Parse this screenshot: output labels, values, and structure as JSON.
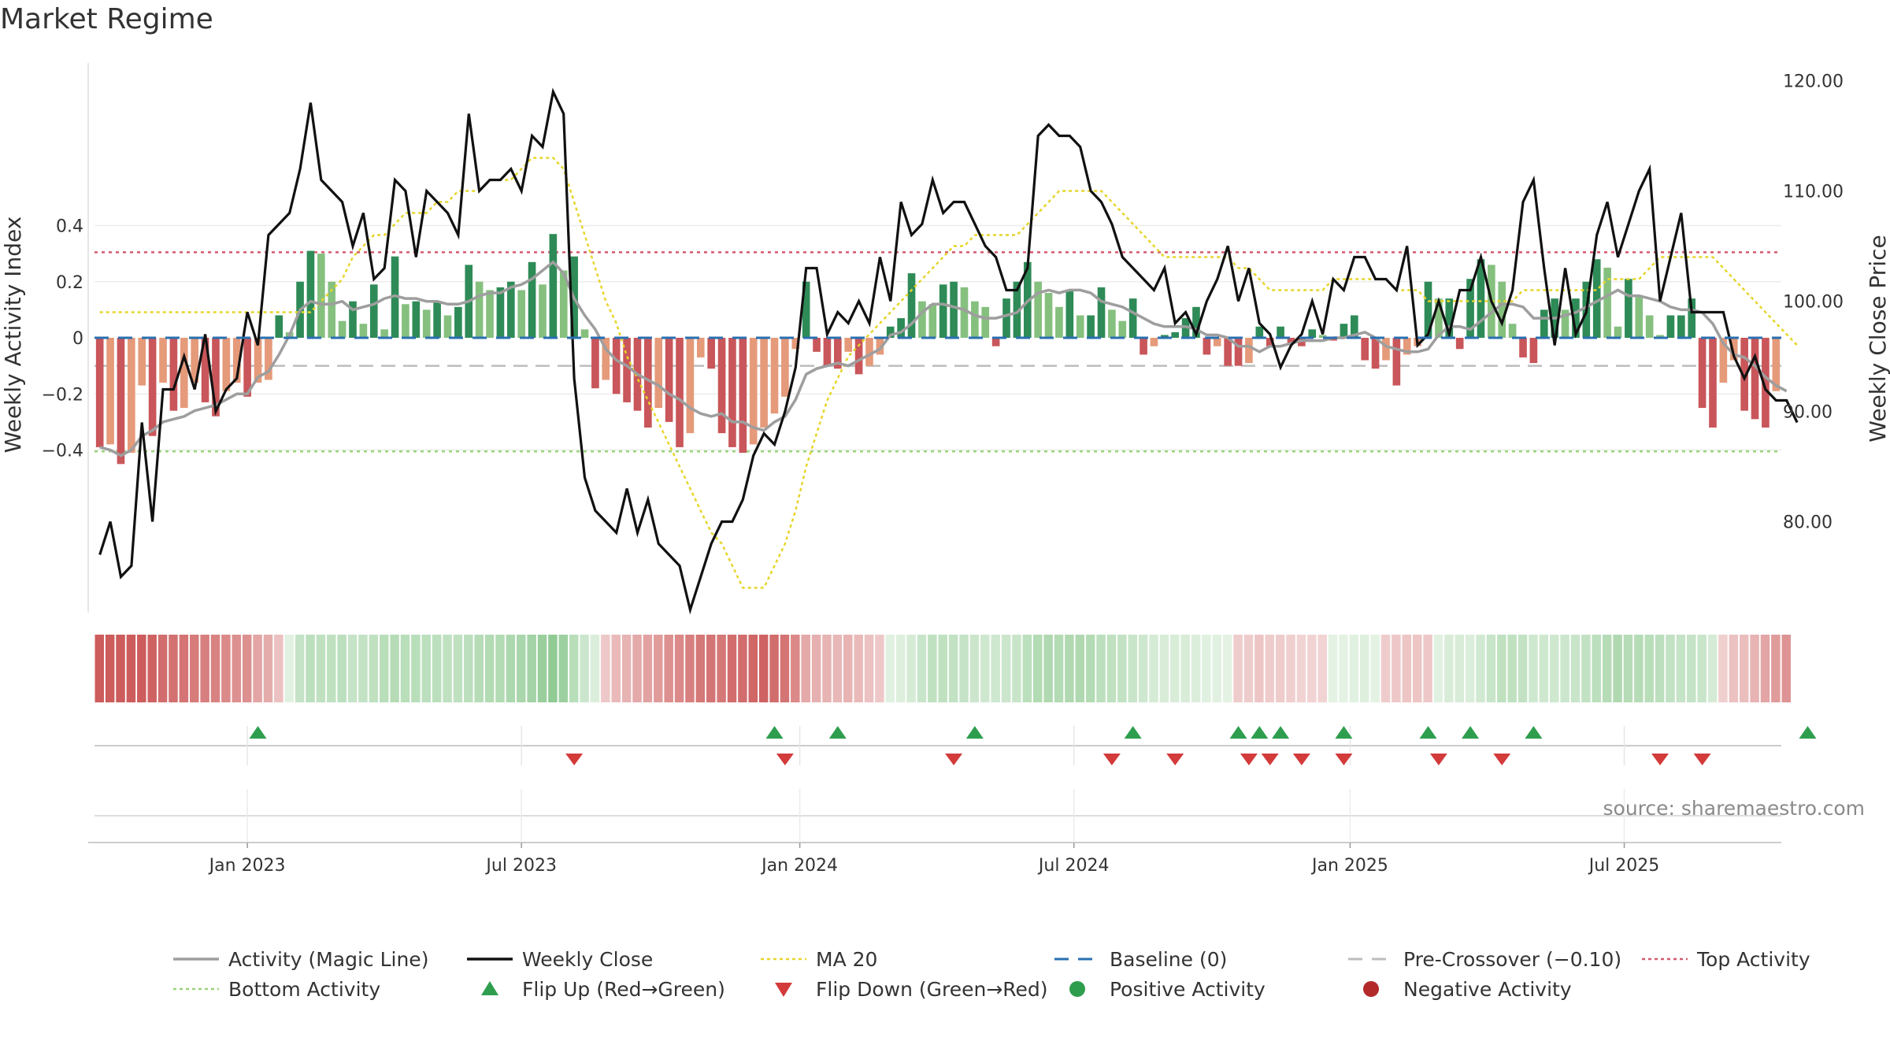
{
  "title": "Market Regime",
  "source": "source: sharemaestro.com",
  "chart_data": {
    "type": "bar",
    "title": "Market Regime",
    "y_left_label": "Weekly Activity Index",
    "y_right_label": "Weekly Close Price",
    "y_left_ticks": [
      {
        "v": 0.4,
        "label": "0.4"
      },
      {
        "v": 0.2,
        "label": "0.2"
      },
      {
        "v": 0,
        "label": "0"
      },
      {
        "v": -0.2,
        "label": "−0.2"
      },
      {
        "v": -0.4,
        "label": "−0.4"
      }
    ],
    "y_right_ticks": [
      {
        "v": 120,
        "label": "120.00"
      },
      {
        "v": 110,
        "label": "110.00"
      },
      {
        "v": 100,
        "label": "100.00"
      },
      {
        "v": 90,
        "label": "90.00"
      },
      {
        "v": 80,
        "label": "80.00"
      }
    ],
    "x_ticks": [
      "Jan 2023",
      "Jul 2023",
      "Jan 2024",
      "Jul 2024",
      "Jan 2025",
      "Jul 2025"
    ],
    "x_tick_weeks": [
      14.5,
      40.5,
      66.9,
      92.9,
      119.1,
      145.1
    ],
    "start_date": "2022-10-02",
    "reference_lines": {
      "top_activity": 0.305,
      "bottom_activity": -0.405,
      "pre_crossover": -0.1,
      "baseline": 0
    },
    "activity": [
      -0.39,
      -0.38,
      -0.45,
      -0.41,
      -0.17,
      -0.35,
      -0.16,
      -0.26,
      -0.25,
      -0.16,
      -0.23,
      -0.28,
      -0.19,
      -0.16,
      -0.21,
      -0.16,
      -0.15,
      0.08,
      0.02,
      0.2,
      0.31,
      0.3,
      0.2,
      0.06,
      0.13,
      0.05,
      0.19,
      0.03,
      0.29,
      0.12,
      0.13,
      0.1,
      0.13,
      0.08,
      0.11,
      0.26,
      0.2,
      0.17,
      0.18,
      0.2,
      0.17,
      0.27,
      0.19,
      0.37,
      0.24,
      0.29,
      0.03,
      -0.18,
      -0.15,
      -0.2,
      -0.23,
      -0.26,
      -0.32,
      -0.25,
      -0.3,
      -0.39,
      -0.34,
      -0.07,
      -0.11,
      -0.34,
      -0.39,
      -0.41,
      -0.38,
      -0.32,
      -0.27,
      -0.21,
      -0.04,
      0.2,
      -0.05,
      -0.1,
      -0.11,
      -0.05,
      -0.13,
      -0.1,
      -0.06,
      0.04,
      0.07,
      0.23,
      0.13,
      0.12,
      0.19,
      0.2,
      0.18,
      0.13,
      0.11,
      -0.03,
      0.14,
      0.2,
      0.27,
      0.2,
      0.16,
      0.11,
      0.17,
      0.08,
      0.08,
      0.18,
      0.1,
      0.06,
      0.14,
      -0.06,
      -0.03,
      0.01,
      0.02,
      0.07,
      0.11,
      -0.06,
      -0.03,
      -0.1,
      -0.1,
      -0.09,
      0.04,
      -0.03,
      0.04,
      -0.02,
      -0.03,
      0.03,
      0.01,
      -0.01,
      0.05,
      0.08,
      -0.08,
      -0.11,
      -0.08,
      -0.17,
      -0.06,
      -0.03,
      0.2,
      0.14,
      0.14,
      -0.04,
      0.21,
      0.28,
      0.26,
      0.2,
      0.05,
      -0.07,
      -0.09,
      0.1,
      0.14,
      0.1,
      0.14,
      0.2,
      0.28,
      0.25,
      0.04,
      0.21,
      0.15,
      0.08,
      0.01,
      0.08,
      0.08,
      0.14,
      -0.25,
      -0.32,
      -0.16,
      -0.08,
      -0.26,
      -0.29,
      -0.32,
      -0.19
    ],
    "magic_line": [
      -0.39,
      -0.4,
      -0.42,
      -0.4,
      -0.35,
      -0.33,
      -0.3,
      -0.29,
      -0.28,
      -0.26,
      -0.25,
      -0.24,
      -0.22,
      -0.2,
      -0.2,
      -0.14,
      -0.12,
      -0.06,
      0.01,
      0.1,
      0.13,
      0.12,
      0.12,
      0.13,
      0.1,
      0.11,
      0.12,
      0.14,
      0.15,
      0.14,
      0.14,
      0.13,
      0.13,
      0.12,
      0.12,
      0.13,
      0.15,
      0.16,
      0.16,
      0.18,
      0.19,
      0.21,
      0.24,
      0.27,
      0.23,
      0.14,
      0.08,
      0.03,
      -0.04,
      -0.08,
      -0.1,
      -0.13,
      -0.15,
      -0.17,
      -0.2,
      -0.22,
      -0.25,
      -0.27,
      -0.28,
      -0.27,
      -0.3,
      -0.3,
      -0.32,
      -0.33,
      -0.3,
      -0.28,
      -0.22,
      -0.13,
      -0.11,
      -0.1,
      -0.09,
      -0.1,
      -0.08,
      -0.06,
      -0.04,
      0.01,
      0.02,
      0.05,
      0.09,
      0.12,
      0.12,
      0.11,
      0.1,
      0.08,
      0.07,
      0.07,
      0.08,
      0.09,
      0.13,
      0.16,
      0.17,
      0.16,
      0.17,
      0.17,
      0.16,
      0.13,
      0.12,
      0.11,
      0.09,
      0.07,
      0.05,
      0.04,
      0.04,
      0.04,
      0.03,
      0.01,
      0.01,
      0.0,
      -0.03,
      -0.03,
      -0.05,
      -0.03,
      -0.03,
      -0.02,
      -0.01,
      -0.01,
      -0.01,
      0.0,
      0.0,
      0.01,
      0.02,
      0.0,
      -0.03,
      -0.04,
      -0.05,
      -0.05,
      -0.04,
      0.01,
      0.04,
      0.04,
      0.03,
      0.06,
      0.09,
      0.12,
      0.12,
      0.11,
      0.07,
      0.07,
      0.07,
      0.08,
      0.09,
      0.11,
      0.13,
      0.15,
      0.17,
      0.15,
      0.15,
      0.14,
      0.13,
      0.11,
      0.1,
      0.1,
      0.09,
      0.05,
      -0.02,
      -0.06,
      -0.07,
      -0.1,
      -0.14,
      -0.17,
      -0.19
    ],
    "weekly_close": [
      77.0,
      80.0,
      75.0,
      76.0,
      89.0,
      80.0,
      92.0,
      92.0,
      95.0,
      92.0,
      97.0,
      90.0,
      92.0,
      93.0,
      99.0,
      96.0,
      106.0,
      107.0,
      108.0,
      112.0,
      118.0,
      111.0,
      110.0,
      109.0,
      105.0,
      108.0,
      102.0,
      103.0,
      111.0,
      110.0,
      104.0,
      110.0,
      109.0,
      108.0,
      106.0,
      117.0,
      110.0,
      111.0,
      111.0,
      112.0,
      110.0,
      115.0,
      114.0,
      119.0,
      117.0,
      93.0,
      84.0,
      81.0,
      80.0,
      79.0,
      83.0,
      79.0,
      82.0,
      78.0,
      77.0,
      76.0,
      72.0,
      75.0,
      78.0,
      80.0,
      80.0,
      82.0,
      86.0,
      88.0,
      87.0,
      90.0,
      94.0,
      103.0,
      103.0,
      97.0,
      99.0,
      98.0,
      100.0,
      98.0,
      104.0,
      100.0,
      109.0,
      106.0,
      107.0,
      111.0,
      108.0,
      109.0,
      109.0,
      107.0,
      105.0,
      104.0,
      101.0,
      101.0,
      103.0,
      115.0,
      116.0,
      115.0,
      115.0,
      114.0,
      110.0,
      109.0,
      107.0,
      104.0,
      103.0,
      102.0,
      101.0,
      103.0,
      98.0,
      99.0,
      97.0,
      100.0,
      102.0,
      105.0,
      100.0,
      103.0,
      98.0,
      97.0,
      94.0,
      96.0,
      97.0,
      100.0,
      97.0,
      102.0,
      101.0,
      104.0,
      104.0,
      102.0,
      102.0,
      101.0,
      105.0,
      96.0,
      97.0,
      100.0,
      97.0,
      101.0,
      101.0,
      104.0,
      100.0,
      98.0,
      101.0,
      109.0,
      111.0,
      103.0,
      96.0,
      103.0,
      97.0,
      99.0,
      106.0,
      109.0,
      104.0,
      107.0,
      110.0,
      112.0,
      100.0,
      104.0,
      108.0,
      99.0,
      99.0,
      99.0,
      99.0,
      95.0,
      93.0,
      95.0,
      92.0,
      91.0,
      91.0,
      89.0
    ],
    "ma20": [
      99.0,
      99.0,
      99.0,
      99.0,
      99.0,
      99.0,
      99.0,
      99.0,
      99.0,
      99.0,
      99.0,
      99.0,
      99.0,
      99.0,
      99.0,
      99.0,
      99.0,
      99.0,
      99.0,
      99.0,
      99.0,
      100.0,
      101.0,
      102.0,
      104.0,
      105.0,
      106.0,
      106.0,
      107.0,
      108.0,
      108.0,
      108.0,
      109.0,
      109.0,
      110.0,
      110.0,
      110.0,
      111.0,
      111.0,
      111.0,
      112.0,
      113.0,
      113.0,
      113.0,
      112.0,
      109.0,
      106.0,
      103.0,
      100.0,
      98.0,
      95.0,
      93.0,
      91.0,
      89.0,
      87.0,
      85.0,
      83.0,
      81.0,
      79.0,
      78.0,
      76.0,
      74.0,
      74.0,
      74.0,
      76.0,
      78.0,
      81.0,
      85.0,
      88.0,
      91.0,
      93.0,
      95.0,
      96.0,
      97.0,
      98.0,
      99.0,
      100.0,
      101.0,
      102.0,
      103.0,
      104.0,
      105.0,
      105.0,
      106.0,
      106.0,
      106.0,
      106.0,
      106.0,
      107.0,
      108.0,
      109.0,
      110.0,
      110.0,
      110.0,
      110.0,
      110.0,
      109.0,
      108.0,
      107.0,
      106.0,
      105.0,
      104.0,
      104.0,
      104.0,
      104.0,
      104.0,
      104.0,
      104.0,
      103.0,
      103.0,
      102.0,
      101.0,
      101.0,
      101.0,
      101.0,
      101.0,
      101.0,
      102.0,
      102.0,
      102.0,
      102.0,
      102.0,
      102.0,
      101.0,
      101.0,
      101.0,
      100.0,
      100.0,
      100.0,
      100.0,
      100.0,
      100.0,
      100.0,
      100.0,
      100.0,
      101.0,
      101.0,
      101.0,
      101.0,
      101.0,
      101.0,
      101.0,
      101.0,
      102.0,
      102.0,
      102.0,
      102.0,
      103.0,
      104.0,
      104.0,
      104.0,
      104.0,
      104.0,
      104.0,
      103.0,
      102.0,
      101.0,
      100.0,
      99.0,
      98.0,
      97.0,
      96.0
    ],
    "flip_up_weeks": [
      15,
      64,
      70,
      83,
      98,
      108,
      110,
      112,
      118,
      126,
      130,
      136,
      162
    ],
    "flip_down_weeks": [
      45,
      65,
      81,
      96,
      102,
      109,
      111,
      114,
      118,
      127,
      133,
      148,
      152
    ],
    "legend": [
      {
        "label": "Activity (Magic Line)",
        "kind": "line",
        "color": "#9e9e9e"
      },
      {
        "label": "Weekly Close",
        "kind": "line",
        "color": "#111111"
      },
      {
        "label": "MA 20",
        "kind": "dotted",
        "color": "#e6d52a"
      },
      {
        "label": "Baseline (0)",
        "kind": "dashed",
        "color": "#2a6fb0"
      },
      {
        "label": "Pre-Crossover (−0.10)",
        "kind": "dashed",
        "color": "#bdbdbd"
      },
      {
        "label": "Top Activity",
        "kind": "dotted",
        "color": "#d45a6e"
      },
      {
        "label": "Bottom Activity",
        "kind": "dotted",
        "color": "#9bd47a"
      },
      {
        "label": "Flip Up (Red→Green)",
        "kind": "tri-up",
        "color": "#2e9e4e"
      },
      {
        "label": "Flip Down (Green→Red)",
        "kind": "tri-down",
        "color": "#d33a3a"
      },
      {
        "label": "Positive Activity",
        "kind": "circle",
        "color": "#2e9e4e"
      },
      {
        "label": "Negative Activity",
        "kind": "circle",
        "color": "#b22a2a"
      }
    ],
    "colors": {
      "pos_strong": "#2e8b57",
      "pos_light": "#86c07f",
      "neg_strong": "#c9565a",
      "neg_light": "#e59a7a"
    }
  }
}
